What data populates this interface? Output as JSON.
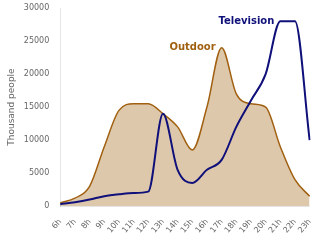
{
  "chart_data": {
    "type": "line",
    "categories": [
      "6h",
      "7h",
      "8h",
      "9h",
      "10h",
      "11h",
      "12h",
      "13h",
      "14h",
      "15h",
      "16h",
      "17h",
      "18h",
      "19h",
      "20h",
      "21h",
      "22h",
      "23h"
    ],
    "series": [
      {
        "name": "Outdoor",
        "type": "area",
        "color": "#a06010",
        "values": [
          500,
          1200,
          3000,
          9000,
          14500,
          15500,
          15500,
          14000,
          12000,
          8500,
          15000,
          24000,
          17000,
          15500,
          15000,
          9000,
          4000,
          1500
        ]
      },
      {
        "name": "Television",
        "type": "line",
        "color": "#10107a",
        "values": [
          300,
          600,
          1000,
          1500,
          1800,
          2000,
          2200,
          14000,
          5500,
          3500,
          5500,
          7000,
          12000,
          16000,
          20000,
          28000,
          28000,
          10000
        ]
      }
    ],
    "y_label": "Thousand people",
    "ylim": [
      0,
      30000
    ],
    "yticks": [
      0,
      5000,
      10000,
      15000,
      20000,
      25000,
      30000
    ],
    "grid": false
  }
}
